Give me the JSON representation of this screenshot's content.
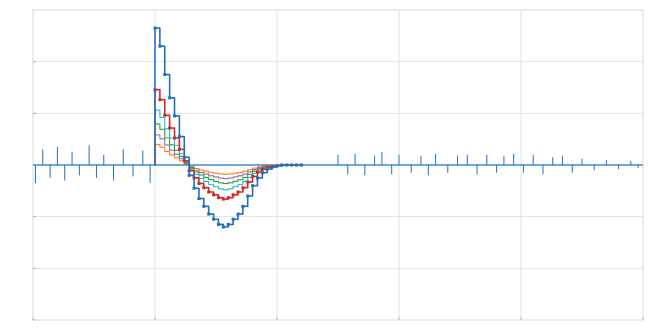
{
  "chart_data": {
    "type": "line",
    "title": "",
    "xlabel": "",
    "ylabel": "",
    "xlim": [
      0,
      5
    ],
    "ylim": [
      -3,
      3
    ],
    "x_ticks": [
      0,
      1,
      2,
      3,
      4,
      5
    ],
    "y_ticks": [
      2,
      1,
      0,
      -1,
      -2,
      -3
    ],
    "x_tick_labels": [
      "",
      "",
      "",
      "",
      "",
      ""
    ],
    "y_tick_labels": [
      "",
      "",
      "",
      "",
      "",
      ""
    ],
    "grid": true,
    "legend": "none",
    "pulse": {
      "x": [
        0.0,
        0.04,
        0.08,
        0.12,
        0.16,
        0.2,
        0.24,
        0.28,
        0.32,
        0.36,
        0.4,
        0.44,
        0.48,
        0.52,
        0.56,
        0.6,
        0.64,
        0.68,
        0.72,
        0.76,
        0.8,
        0.84,
        0.88,
        0.92,
        0.96,
        1.0,
        1.04,
        1.08,
        1.12,
        1.16,
        1.2
      ],
      "y": [
        2.65,
        2.3,
        1.75,
        1.3,
        0.95,
        0.55,
        0.15,
        -0.2,
        -0.45,
        -0.65,
        -0.8,
        -0.95,
        -1.05,
        -1.15,
        -1.2,
        -1.15,
        -1.05,
        -0.95,
        -0.8,
        -0.6,
        -0.4,
        -0.25,
        -0.15,
        -0.08,
        -0.04,
        -0.02,
        0.0,
        0.0,
        0.0,
        0.0,
        0.0
      ]
    },
    "series": [
      {
        "scale": 1.0,
        "color": "#1f6fc0",
        "markers": true
      },
      {
        "scale": 0.55,
        "color": "#d62728",
        "markers": true
      },
      {
        "scale": 0.4,
        "color": "#17becf",
        "markers": false
      },
      {
        "scale": 0.3,
        "color": "#2ca02c",
        "markers": false
      },
      {
        "scale": 0.22,
        "color": "#9467bd",
        "markers": false
      },
      {
        "scale": 0.15,
        "color": "#ff7f0e",
        "markers": false
      }
    ],
    "baseline_spikes": [
      {
        "x": 0.02,
        "y": -0.35
      },
      {
        "x": 0.08,
        "y": 0.3
      },
      {
        "x": 0.14,
        "y": -0.25
      },
      {
        "x": 0.2,
        "y": 0.35
      },
      {
        "x": 0.26,
        "y": -0.3
      },
      {
        "x": 0.32,
        "y": 0.25
      },
      {
        "x": 0.38,
        "y": -0.2
      },
      {
        "x": 0.46,
        "y": 0.38
      },
      {
        "x": 0.52,
        "y": -0.25
      },
      {
        "x": 0.58,
        "y": 0.2
      },
      {
        "x": 0.66,
        "y": -0.3
      },
      {
        "x": 0.74,
        "y": 0.3
      },
      {
        "x": 0.82,
        "y": -0.22
      },
      {
        "x": 0.9,
        "y": 0.28
      },
      {
        "x": 0.96,
        "y": -0.35
      },
      {
        "x": 2.5,
        "y": 0.2
      },
      {
        "x": 2.58,
        "y": -0.18
      },
      {
        "x": 2.64,
        "y": 0.22
      },
      {
        "x": 2.72,
        "y": -0.2
      },
      {
        "x": 2.8,
        "y": 0.18
      },
      {
        "x": 2.86,
        "y": 0.25
      },
      {
        "x": 2.94,
        "y": -0.18
      },
      {
        "x": 3.0,
        "y": 0.2
      },
      {
        "x": 3.1,
        "y": -0.15
      },
      {
        "x": 3.18,
        "y": 0.18
      },
      {
        "x": 3.24,
        "y": -0.2
      },
      {
        "x": 3.3,
        "y": 0.22
      },
      {
        "x": 3.4,
        "y": -0.15
      },
      {
        "x": 3.48,
        "y": 0.18
      },
      {
        "x": 3.56,
        "y": 0.2
      },
      {
        "x": 3.64,
        "y": -0.18
      },
      {
        "x": 3.72,
        "y": 0.2
      },
      {
        "x": 3.8,
        "y": -0.15
      },
      {
        "x": 3.86,
        "y": 0.18
      },
      {
        "x": 3.94,
        "y": 0.22
      },
      {
        "x": 4.02,
        "y": -0.15
      },
      {
        "x": 4.1,
        "y": 0.2
      },
      {
        "x": 4.18,
        "y": -0.18
      },
      {
        "x": 4.26,
        "y": 0.15
      },
      {
        "x": 4.34,
        "y": 0.18
      },
      {
        "x": 4.42,
        "y": -0.15
      },
      {
        "x": 4.5,
        "y": 0.12
      },
      {
        "x": 4.6,
        "y": -0.1
      },
      {
        "x": 4.7,
        "y": 0.1
      },
      {
        "x": 4.8,
        "y": -0.08
      },
      {
        "x": 4.9,
        "y": 0.08
      },
      {
        "x": 4.96,
        "y": -0.06
      }
    ]
  },
  "colors": {
    "background": "#ffffff",
    "grid": "#e3e3e3",
    "frame": "#d9d9d9",
    "baseline": "#1f6fc0"
  }
}
